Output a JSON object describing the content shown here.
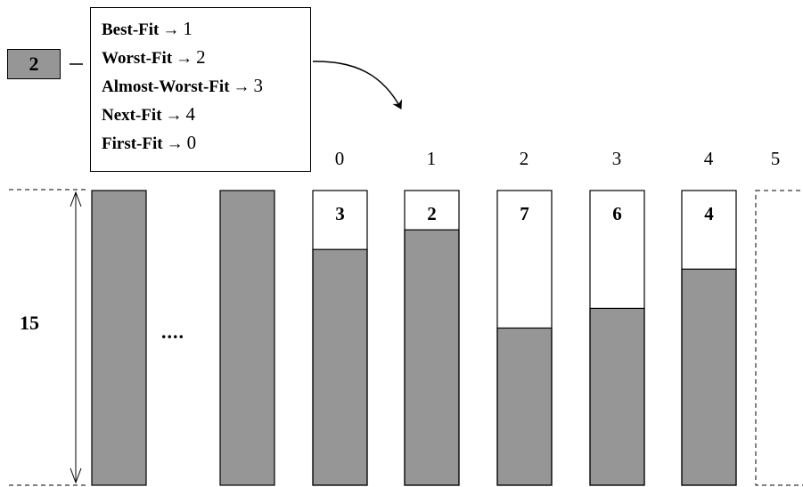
{
  "item": {
    "size": "2"
  },
  "legend": {
    "rows": [
      {
        "name": "Best-Fit",
        "arrow": "→",
        "value": "1"
      },
      {
        "name": "Worst-Fit",
        "arrow": "→",
        "value": "2"
      },
      {
        "name": "Almost-Worst-Fit",
        "arrow": "→",
        "value": "3"
      },
      {
        "name": "Next-Fit",
        "arrow": "→",
        "value": "4"
      },
      {
        "name": "First-Fit",
        "arrow": "→",
        "value": "0"
      }
    ]
  },
  "capacity_label": "15",
  "ellipsis": "....",
  "bins": [
    {
      "index": "0",
      "free_label": "3",
      "free": 3
    },
    {
      "index": "1",
      "free_label": "2",
      "free": 2
    },
    {
      "index": "2",
      "free_label": "7",
      "free": 7
    },
    {
      "index": "3",
      "free_label": "6",
      "free": 6
    },
    {
      "index": "4",
      "free_label": "4",
      "free": 4
    },
    {
      "index": "5",
      "free_label": "",
      "free": 15
    }
  ],
  "capacity": 15,
  "colors": {
    "filled": "#969696",
    "empty": "#ffffff",
    "stroke": "#000000"
  }
}
